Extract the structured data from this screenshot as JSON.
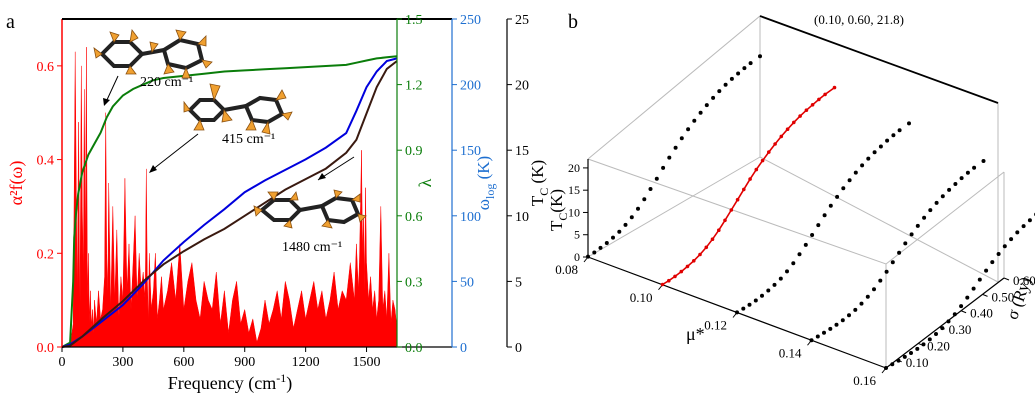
{
  "panel_a": {
    "label": "a",
    "xlabel": "Frequency (cm",
    "xlabel_sup": "-1",
    "xlabel_end": ")",
    "left_axis_label": "α²f(ω)",
    "lambda_label": "λ",
    "wlog_label": "ω",
    "wlog_sub": "log",
    "wlog_unit": " (K)",
    "tc_label": "T",
    "tc_sub": "C",
    "tc_unit": " (K)",
    "colors": {
      "a2f": "#ff0000",
      "lambda": "#0a7d0a",
      "wlog": "#0000dd",
      "tc": "#3a1a10",
      "wlog_axis": "#1e6fd0"
    },
    "modes": [
      {
        "label": "220 cm⁻¹"
      },
      {
        "label": "415 cm⁻¹"
      },
      {
        "label": "1480 cm⁻¹"
      }
    ]
  },
  "panel_b": {
    "label": "b",
    "point_label": "(0.10, 0.60, 21.8)",
    "mu_label": "μ*",
    "sigma_label": "σ (Ry)",
    "tc_label": "T",
    "tc_sub": "C",
    "tc_unit": "(K)",
    "mu_ticks": [
      "0.08",
      "0.10",
      "0.12",
      "0.14",
      "0.16"
    ],
    "sigma_ticks": [
      "0.10",
      "0.20",
      "0.30",
      "0.40",
      "0.50",
      "0.60"
    ],
    "tc_ticks": [
      "0",
      "5",
      "10",
      "15",
      "20"
    ],
    "highlight_color": "#e00000"
  },
  "chart_data": [
    {
      "type": "area",
      "xlim": [
        0,
        1650
      ],
      "x_ticks": [
        0,
        300,
        600,
        900,
        1200,
        1500
      ],
      "axes": [
        {
          "name": "α²f(ω)",
          "ylim": [
            0,
            0.7
          ],
          "ticks": [
            0.0,
            0.2,
            0.4,
            0.6
          ]
        },
        {
          "name": "λ",
          "ylim": [
            0,
            1.5
          ],
          "ticks": [
            0.0,
            0.3,
            0.6,
            0.9,
            1.2,
            1.5
          ]
        },
        {
          "name": "ω_log (K)",
          "ylim": [
            0,
            250
          ],
          "ticks": [
            0,
            50,
            100,
            150,
            200,
            250
          ]
        },
        {
          "name": "T_C (K)",
          "ylim": [
            0,
            25
          ],
          "ticks": [
            0,
            5,
            10,
            15,
            20,
            25
          ]
        }
      ],
      "series": [
        {
          "name": "α²f(ω)",
          "axis": 0,
          "type": "area",
          "x": [
            40,
            55,
            65,
            75,
            82,
            88,
            95,
            100,
            105,
            110,
            115,
            120,
            125,
            130,
            135,
            140,
            145,
            150,
            155,
            160,
            170,
            180,
            190,
            200,
            210,
            215,
            220,
            225,
            230,
            240,
            250,
            260,
            270,
            280,
            290,
            300,
            310,
            320,
            330,
            340,
            350,
            360,
            370,
            380,
            390,
            400,
            410,
            415,
            420,
            425,
            430,
            440,
            450,
            460,
            470,
            480,
            490,
            500,
            520,
            540,
            560,
            580,
            600,
            620,
            640,
            660,
            680,
            700,
            720,
            740,
            760,
            780,
            800,
            820,
            840,
            860,
            880,
            900,
            920,
            940,
            960,
            980,
            1000,
            1020,
            1040,
            1060,
            1080,
            1100,
            1120,
            1140,
            1160,
            1180,
            1200,
            1220,
            1240,
            1260,
            1280,
            1300,
            1320,
            1340,
            1360,
            1380,
            1400,
            1420,
            1440,
            1450,
            1460,
            1465,
            1470,
            1475,
            1480,
            1485,
            1490,
            1495,
            1500,
            1510,
            1520,
            1530,
            1540,
            1550,
            1560,
            1570,
            1580,
            1590,
            1600,
            1610,
            1620,
            1630,
            1640,
            1650
          ],
          "values": [
            0.0,
            0.05,
            0.63,
            0.1,
            0.48,
            0.05,
            0.6,
            0.3,
            0.15,
            0.55,
            0.2,
            0.64,
            0.1,
            0.2,
            0.05,
            0.12,
            0.04,
            0.08,
            0.03,
            0.1,
            0.05,
            0.12,
            0.06,
            0.08,
            0.15,
            0.5,
            0.2,
            0.1,
            0.35,
            0.08,
            0.3,
            0.1,
            0.25,
            0.06,
            0.15,
            0.1,
            0.36,
            0.12,
            0.22,
            0.08,
            0.18,
            0.28,
            0.1,
            0.2,
            0.12,
            0.16,
            0.1,
            0.38,
            0.15,
            0.05,
            0.2,
            0.08,
            0.12,
            0.2,
            0.06,
            0.1,
            0.15,
            0.08,
            0.12,
            0.18,
            0.1,
            0.22,
            0.08,
            0.14,
            0.18,
            0.1,
            0.06,
            0.14,
            0.1,
            0.08,
            0.16,
            0.05,
            0.12,
            0.03,
            0.1,
            0.14,
            0.05,
            0.08,
            0.03,
            0.06,
            0.01,
            0.04,
            0.1,
            0.05,
            0.08,
            0.12,
            0.06,
            0.14,
            0.1,
            0.04,
            0.08,
            0.12,
            0.06,
            0.1,
            0.14,
            0.08,
            0.12,
            0.06,
            0.1,
            0.16,
            0.08,
            0.12,
            0.1,
            0.18,
            0.1,
            0.22,
            0.12,
            0.18,
            0.3,
            0.42,
            0.2,
            0.28,
            0.12,
            0.34,
            0.18,
            0.1,
            0.15,
            0.08,
            0.12,
            0.06,
            0.1,
            0.3,
            0.08,
            0.12,
            0.06,
            0.2,
            0.05,
            0.1,
            0.08,
            0.04
          ]
        },
        {
          "name": "λ",
          "axis": 1,
          "type": "line",
          "x": [
            0,
            40,
            55,
            60,
            70,
            80,
            100,
            130,
            160,
            190,
            220,
            250,
            300,
            350,
            400,
            450,
            500,
            600,
            700,
            800,
            900,
            1000,
            1100,
            1200,
            1300,
            1400,
            1450,
            1500,
            1550,
            1600,
            1650
          ],
          "values": [
            0,
            0.02,
            0.3,
            0.5,
            0.62,
            0.7,
            0.8,
            0.88,
            0.93,
            0.98,
            1.05,
            1.1,
            1.15,
            1.18,
            1.2,
            1.22,
            1.23,
            1.24,
            1.25,
            1.26,
            1.265,
            1.27,
            1.275,
            1.28,
            1.285,
            1.29,
            1.3,
            1.31,
            1.32,
            1.325,
            1.33
          ]
        },
        {
          "name": "ω_log (K)",
          "axis": 2,
          "type": "line",
          "x": [
            0,
            40,
            100,
            200,
            300,
            400,
            500,
            600,
            700,
            800,
            900,
            1000,
            1100,
            1200,
            1300,
            1400,
            1450,
            1500,
            1550,
            1600,
            1650
          ],
          "values": [
            0,
            2,
            8,
            20,
            32,
            48,
            66,
            80,
            93,
            105,
            118,
            127,
            135,
            143,
            152,
            163,
            180,
            198,
            210,
            218,
            220
          ]
        },
        {
          "name": "T_C (K)",
          "axis": 3,
          "type": "line",
          "x": [
            0,
            40,
            100,
            200,
            300,
            400,
            500,
            600,
            700,
            800,
            900,
            1000,
            1100,
            1200,
            1300,
            1400,
            1450,
            1500,
            1550,
            1600,
            1650
          ],
          "values": [
            0,
            0.1,
            0.8,
            2.2,
            3.5,
            5.0,
            6.3,
            7.3,
            8.2,
            9.0,
            10.0,
            11.0,
            12.0,
            12.8,
            13.6,
            14.8,
            15.8,
            17.8,
            19.8,
            21.2,
            21.8
          ]
        }
      ]
    },
    {
      "type": "scatter",
      "mu_range": [
        0.08,
        0.16
      ],
      "sigma_range": [
        0.05,
        0.6
      ],
      "tc_range": [
        0,
        22
      ],
      "highlight_point": {
        "mu": 0.1,
        "sigma": 0.6,
        "tc": 21.8
      },
      "sigma_samples": [
        0.05,
        0.07,
        0.09,
        0.11,
        0.13,
        0.15,
        0.17,
        0.19,
        0.21,
        0.23,
        0.25,
        0.27,
        0.29,
        0.31,
        0.33,
        0.35,
        0.37,
        0.39,
        0.41,
        0.43,
        0.45,
        0.47,
        0.49,
        0.51,
        0.53,
        0.55,
        0.57,
        0.6
      ],
      "series": [
        {
          "mu": 0.08,
          "highlight": false,
          "tc": [
            0.1,
            0.2,
            0.4,
            0.7,
            1.1,
            1.6,
            2.3,
            3.2,
            4.3,
            5.6,
            7.1,
            8.6,
            10.2,
            11.7,
            13.1,
            14.4,
            15.6,
            16.7,
            17.7,
            18.6,
            19.4,
            20.1,
            20.7,
            21.2,
            21.6,
            22.0,
            22.3,
            22.6
          ]
        },
        {
          "mu": 0.1,
          "highlight": true,
          "tc": [
            0.05,
            0.1,
            0.25,
            0.5,
            0.85,
            1.3,
            1.9,
            2.7,
            3.7,
            4.9,
            6.3,
            7.8,
            9.3,
            10.8,
            12.3,
            13.6,
            14.8,
            15.9,
            16.9,
            17.8,
            18.6,
            19.3,
            19.9,
            20.4,
            20.8,
            21.2,
            21.5,
            21.8
          ]
        },
        {
          "mu": 0.12,
          "highlight": false,
          "tc": [
            0.02,
            0.05,
            0.1,
            0.25,
            0.5,
            0.85,
            1.3,
            1.9,
            2.7,
            3.7,
            4.9,
            6.2,
            7.6,
            9.0,
            10.4,
            11.7,
            12.9,
            14.0,
            15.0,
            15.9,
            16.7,
            17.4,
            18.0,
            18.5,
            19.0,
            19.4,
            19.7,
            20.0
          ]
        },
        {
          "mu": 0.14,
          "highlight": false,
          "tc": [
            0.01,
            0.02,
            0.05,
            0.1,
            0.2,
            0.4,
            0.7,
            1.1,
            1.7,
            2.4,
            3.3,
            4.4,
            5.6,
            6.9,
            8.2,
            9.5,
            10.7,
            11.8,
            12.8,
            13.7,
            14.5,
            15.2,
            15.8,
            16.3,
            16.8,
            17.2,
            17.5,
            17.8
          ]
        },
        {
          "mu": 0.16,
          "highlight": false,
          "tc": [
            0.0,
            0.01,
            0.02,
            0.05,
            0.1,
            0.2,
            0.4,
            0.7,
            1.1,
            1.6,
            2.3,
            3.1,
            4.1,
            5.2,
            6.4,
            7.6,
            8.8,
            9.9,
            10.9,
            11.8,
            12.6,
            13.3,
            13.9,
            14.4,
            14.9,
            15.3,
            15.6,
            15.9
          ]
        }
      ]
    }
  ]
}
